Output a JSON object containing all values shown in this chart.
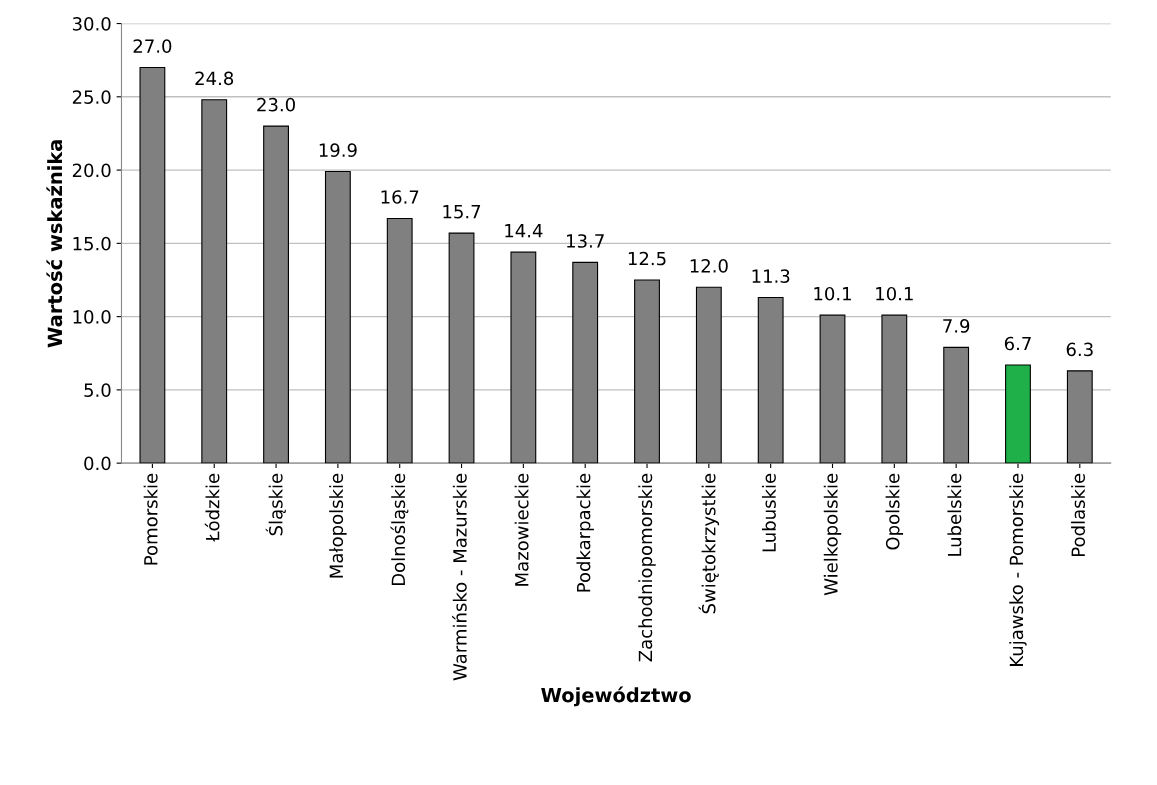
{
  "chart_data": {
    "type": "bar",
    "xlabel": "Województwo",
    "ylabel": "Wartość wskaźnika",
    "categories": [
      "Pomorskie",
      "Łódzkie",
      "Śląskie",
      "Małopolskie",
      "Dolnośląskie",
      "Warmińsko - Mazurskie",
      "Mazowieckie",
      "Podkarpackie",
      "Zachodniopomorskie",
      "Świętokrzystkie",
      "Lubuskie",
      "Wielkopolskie",
      "Opolskie",
      "Lubelskie",
      "Kujawsko - Pomorskie",
      "Podlaskie"
    ],
    "values": [
      27.0,
      24.8,
      23.0,
      19.9,
      16.7,
      15.7,
      14.4,
      13.7,
      12.5,
      12.0,
      11.3,
      10.1,
      10.1,
      7.9,
      6.7,
      6.3
    ],
    "colors": [
      "#808080",
      "#808080",
      "#808080",
      "#808080",
      "#808080",
      "#808080",
      "#808080",
      "#808080",
      "#808080",
      "#808080",
      "#808080",
      "#808080",
      "#808080",
      "#808080",
      "#1fb04a",
      "#808080"
    ],
    "ylim": [
      0,
      30
    ],
    "yticks": [
      {
        "value": 0,
        "label": "0.0"
      },
      {
        "value": 5,
        "label": "5.0"
      },
      {
        "value": 10,
        "label": "10.0"
      },
      {
        "value": 15,
        "label": "15.0"
      },
      {
        "value": 20,
        "label": "20.0"
      },
      {
        "value": 25,
        "label": "25.0"
      },
      {
        "value": 30,
        "label": "30.0"
      }
    ],
    "value_labels": [
      "27.0",
      "24.8",
      "23.0",
      "19.9",
      "16.7",
      "15.7",
      "14.4",
      "13.7",
      "12.5",
      "12.0",
      "11.3",
      "10.1",
      "10.1",
      "7.9",
      "6.7",
      "6.3"
    ],
    "grid": "y"
  }
}
